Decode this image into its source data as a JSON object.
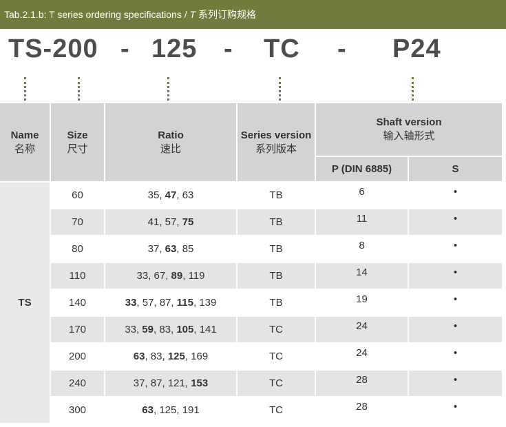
{
  "header": {
    "caption": [
      "Tab.2.1.b: T series ordering specifications / ",
      "T",
      " 系列订购规格"
    ]
  },
  "code": [
    "TS-200",
    "-",
    "125",
    "-",
    "TC",
    "-",
    "P24"
  ],
  "table": {
    "columns": [
      {
        "en": "Name",
        "zh": "名称"
      },
      {
        "en": "Size",
        "zh": "尺寸"
      },
      {
        "en": "Ratio",
        "zh": "速比"
      },
      {
        "en": "Series version",
        "zh": "系列版本"
      },
      {
        "en": "Shaft version",
        "zh": "输入轴形式",
        "sub": [
          "P (DIN 6885)",
          "S"
        ]
      }
    ],
    "name": "TS",
    "rows": [
      {
        "size": 60,
        "ratios": [
          {
            "value": 35
          },
          {
            "value": 47,
            "bold": true
          },
          {
            "value": 63
          }
        ],
        "series": "TB",
        "p": 6,
        "s": "•"
      },
      {
        "size": 70,
        "ratios": [
          {
            "value": 41
          },
          {
            "value": 57
          },
          {
            "value": 75,
            "bold": true
          }
        ],
        "series": "TB",
        "p": 11,
        "s": "•"
      },
      {
        "size": 80,
        "ratios": [
          {
            "value": 37
          },
          {
            "value": 63,
            "bold": true
          },
          {
            "value": 85
          }
        ],
        "series": "TB",
        "p": 8,
        "s": "•"
      },
      {
        "size": 110,
        "ratios": [
          {
            "value": 33
          },
          {
            "value": 67
          },
          {
            "value": 89,
            "bold": true
          },
          {
            "value": 119
          }
        ],
        "series": "TB",
        "p": 14,
        "s": "•"
      },
      {
        "size": 140,
        "ratios": [
          {
            "value": 33,
            "bold": true
          },
          {
            "value": 57
          },
          {
            "value": 87
          },
          {
            "value": 115,
            "bold": true
          },
          {
            "value": 139
          }
        ],
        "series": "TB",
        "p": 19,
        "s": "•"
      },
      {
        "size": 170,
        "ratios": [
          {
            "value": 33
          },
          {
            "value": 59,
            "bold": true
          },
          {
            "value": 83
          },
          {
            "value": 105,
            "bold": true
          },
          {
            "value": 141
          }
        ],
        "series": "TC",
        "p": 24,
        "s": "•"
      },
      {
        "size": 200,
        "ratios": [
          {
            "value": 63,
            "bold": true
          },
          {
            "value": 83
          },
          {
            "value": 125,
            "bold": true
          },
          {
            "value": 169
          }
        ],
        "series": "TC",
        "p": 24,
        "s": "•"
      },
      {
        "size": 240,
        "ratios": [
          {
            "value": 37
          },
          {
            "value": 87
          },
          {
            "value": 121
          },
          {
            "value": 153,
            "bold": true
          }
        ],
        "series": "TC",
        "p": 28,
        "s": "•"
      },
      {
        "size": 300,
        "ratios": [
          {
            "value": 63,
            "bold": true
          },
          {
            "value": 125
          },
          {
            "value": 191
          }
        ],
        "series": "TC",
        "p": 28,
        "s": "•"
      }
    ]
  }
}
